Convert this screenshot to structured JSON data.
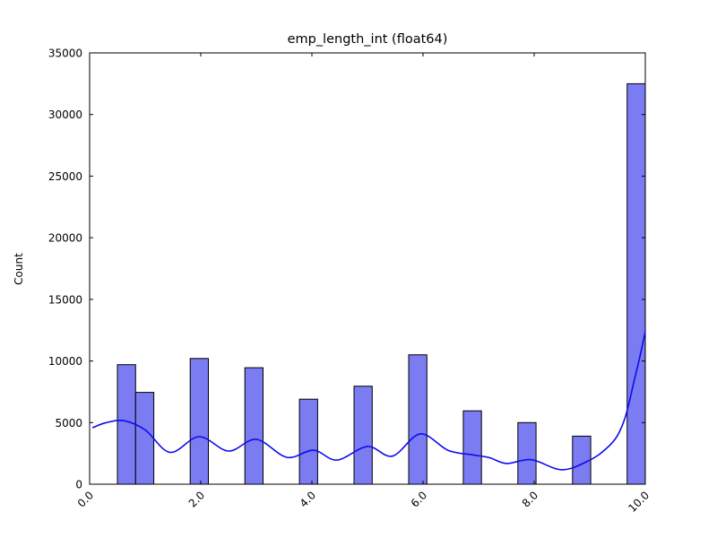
{
  "figure": {
    "background": "#ffffff"
  },
  "colors": {
    "bar_fill": "#7b7bf2",
    "bar_edge": "#000000",
    "kde_line": "#0d0dee",
    "axis": "#000000",
    "text": "#000000"
  },
  "chart_data": {
    "type": "bar",
    "subtype": "histogram-with-kde",
    "title": "emp_length_int (float64)",
    "xlabel": "",
    "ylabel": "Count",
    "xlim": [
      0.0,
      10.0
    ],
    "ylim": [
      0,
      35000
    ],
    "grid": "off",
    "legend": "none",
    "tick_style": "inward-all-sides",
    "xticks": [
      {
        "value": 0,
        "label": "0.0"
      },
      {
        "value": 2,
        "label": "2.0"
      },
      {
        "value": 4,
        "label": "4.0"
      },
      {
        "value": 6,
        "label": "6.0"
      },
      {
        "value": 8,
        "label": "8.0"
      },
      {
        "value": 10,
        "label": "10.0"
      }
    ],
    "yticks": [
      {
        "value": 0,
        "label": "0"
      },
      {
        "value": 5000,
        "label": "5000"
      },
      {
        "value": 10000,
        "label": "10000"
      },
      {
        "value": 15000,
        "label": "15000"
      },
      {
        "value": 20000,
        "label": "20000"
      },
      {
        "value": 25000,
        "label": "25000"
      },
      {
        "value": 30000,
        "label": "30000"
      },
      {
        "value": 35000,
        "label": "35000"
      }
    ],
    "bin_width": 0.327586,
    "bars": [
      {
        "value": 0.5,
        "bin_left": 0.5,
        "count": 9700
      },
      {
        "value": 1,
        "bin_left": 0.8276,
        "count": 7450
      },
      {
        "value": 2,
        "bin_left": 1.8103,
        "count": 10200
      },
      {
        "value": 3,
        "bin_left": 2.7931,
        "count": 9450
      },
      {
        "value": 4,
        "bin_left": 3.7759,
        "count": 6900
      },
      {
        "value": 5,
        "bin_left": 4.7586,
        "count": 7950
      },
      {
        "value": 6,
        "bin_left": 5.7414,
        "count": 10500
      },
      {
        "value": 7,
        "bin_left": 6.7241,
        "count": 5950
      },
      {
        "value": 8,
        "bin_left": 7.7069,
        "count": 5000
      },
      {
        "value": 9,
        "bin_left": 8.6897,
        "count": 3900
      },
      {
        "value": 10,
        "bin_left": 9.6724,
        "count": 32500
      }
    ],
    "kde_points": [
      [
        0.06,
        4600
      ],
      [
        0.3,
        5000
      ],
      [
        0.62,
        5150
      ],
      [
        1.0,
        4400
      ],
      [
        1.45,
        2580
      ],
      [
        1.97,
        3860
      ],
      [
        2.5,
        2690
      ],
      [
        3.0,
        3640
      ],
      [
        3.55,
        2180
      ],
      [
        4.03,
        2760
      ],
      [
        4.45,
        1960
      ],
      [
        5.0,
        3060
      ],
      [
        5.45,
        2280
      ],
      [
        5.95,
        4080
      ],
      [
        6.45,
        2750
      ],
      [
        6.9,
        2380
      ],
      [
        7.2,
        2150
      ],
      [
        7.5,
        1680
      ],
      [
        7.95,
        1990
      ],
      [
        8.5,
        1170
      ],
      [
        9.0,
        1950
      ],
      [
        9.3,
        2900
      ],
      [
        9.5,
        3950
      ],
      [
        9.65,
        5600
      ],
      [
        9.8,
        8400
      ],
      [
        9.9,
        10300
      ],
      [
        10.0,
        12400
      ]
    ]
  }
}
